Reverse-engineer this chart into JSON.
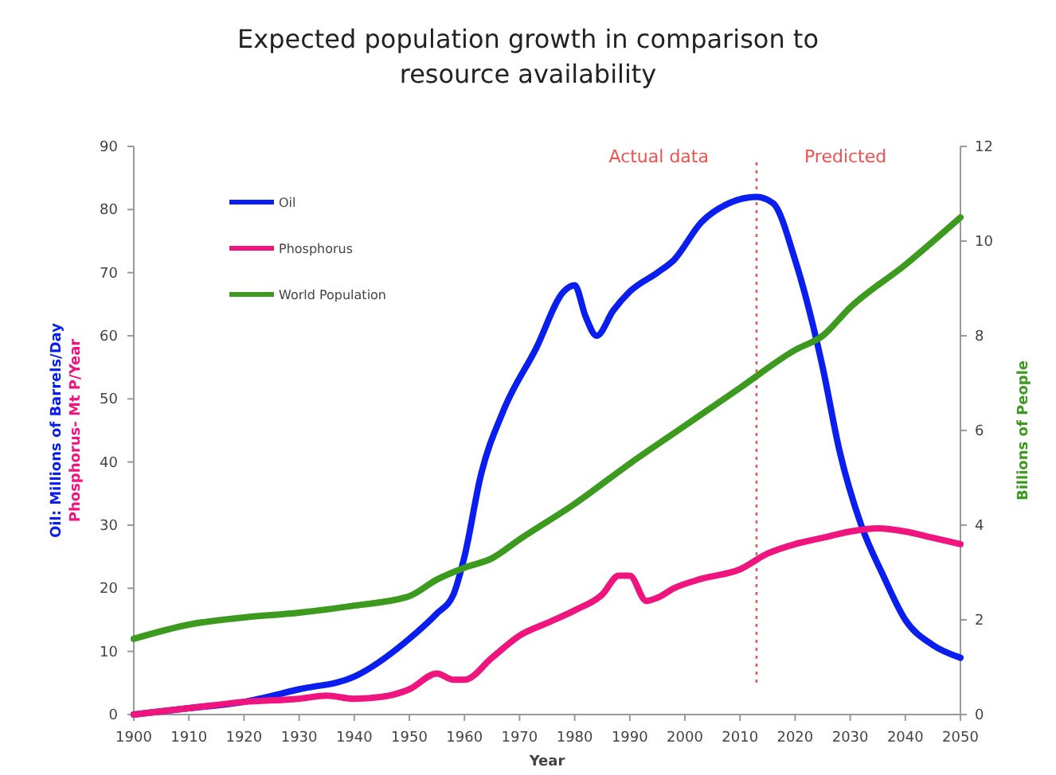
{
  "chart_data": {
    "type": "line",
    "title": "Expected population growth in comparison to resource availability",
    "xlabel": "Year",
    "ylabel": "Oil: Millions of Barrels/Day\nPhosphorus- Mt P/Year",
    "y2label": "Billions of People",
    "xlim": [
      1900,
      2050
    ],
    "xticks": [
      1900,
      1910,
      1920,
      1930,
      1940,
      1950,
      1960,
      1970,
      1980,
      1990,
      2000,
      2010,
      2020,
      2030,
      2040,
      2050
    ],
    "ylim": [
      0,
      90
    ],
    "yticks": [
      0,
      10,
      20,
      30,
      40,
      50,
      60,
      70,
      80,
      90
    ],
    "y2lim": [
      0,
      12
    ],
    "y2ticks": [
      0,
      2,
      4,
      6,
      8,
      10,
      12
    ],
    "grid": false,
    "legend": "top left",
    "marker": "none",
    "line_style": "solid",
    "series": [
      {
        "name": "Oil",
        "color": "#0a1ef0",
        "x": [
          1900,
          1910,
          1920,
          1930,
          1940,
          1950,
          1955,
          1958,
          1960,
          1963,
          1967,
          1973,
          1978,
          1980,
          1982,
          1984,
          1987,
          1990,
          1995,
          1998,
          2003,
          2008,
          2013,
          2016,
          2020,
          2025,
          2028,
          2032,
          2036,
          2040,
          2045,
          2050
        ],
        "values": [
          0,
          1,
          2,
          4,
          6,
          12,
          16,
          19,
          25,
          38,
          48,
          58,
          67,
          68,
          63,
          60,
          64,
          67,
          70,
          72,
          78,
          81,
          82,
          81,
          72,
          55,
          42,
          30,
          22,
          15,
          11,
          9
        ]
      },
      {
        "name": "Phosphorus",
        "color": "#f0147f",
        "x": [
          1900,
          1910,
          1920,
          1930,
          1935,
          1940,
          1945,
          1950,
          1955,
          1958,
          1960,
          1965,
          1970,
          1975,
          1980,
          1985,
          1988,
          1990,
          1993,
          1995,
          1998,
          2003,
          2010,
          2015,
          2020,
          2025,
          2030,
          2035,
          2040,
          2045,
          2050
        ],
        "values": [
          0,
          1,
          2,
          2.5,
          3,
          2.5,
          2.8,
          4,
          6.5,
          5.5,
          5.5,
          9,
          12.5,
          14.5,
          16.5,
          19,
          22,
          22,
          18,
          18.5,
          20,
          21.5,
          23,
          25.5,
          27,
          28,
          29,
          29.5,
          29,
          28,
          27
        ]
      },
      {
        "name": "World Population",
        "color": "#3c9a1e",
        "axis": "y2",
        "x": [
          1900,
          1910,
          1920,
          1930,
          1940,
          1950,
          1955,
          1960,
          1965,
          1970,
          1980,
          1990,
          2000,
          2010,
          2020,
          2025,
          2030,
          2040,
          2050
        ],
        "values": [
          1.6,
          1.9,
          2.05,
          2.15,
          2.3,
          2.5,
          2.85,
          3.1,
          3.3,
          3.7,
          4.45,
          5.3,
          6.1,
          6.9,
          7.7,
          8.0,
          8.6,
          9.5,
          10.5
        ]
      }
    ],
    "ref_lines": [
      {
        "axis": "x",
        "value": 2013,
        "color": "#f05050",
        "line_style": "dotted"
      }
    ],
    "annotations": [
      "Actual data",
      "Predicted"
    ]
  }
}
